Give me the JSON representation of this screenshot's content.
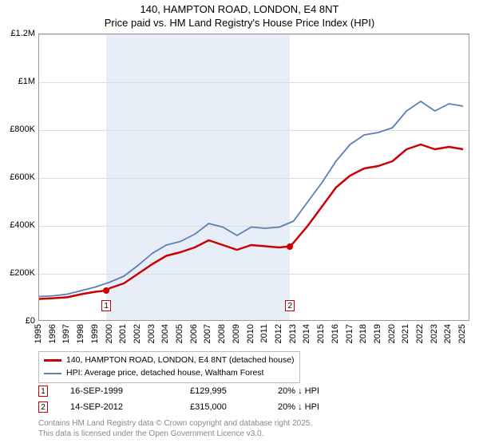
{
  "title_line1": "140, HAMPTON ROAD, LONDON, E4 8NT",
  "title_line2": "Price paid vs. HM Land Registry's House Price Index (HPI)",
  "chart": {
    "type": "line",
    "x_start": 1995,
    "x_end": 2025.5,
    "ylim": [
      0,
      1200000
    ],
    "ytick_step": 200000,
    "ytick_labels": [
      "£0",
      "£200K",
      "£400K",
      "£600K",
      "£800K",
      "£1M",
      "£1.2M"
    ],
    "xticks": [
      1995,
      1996,
      1997,
      1998,
      1999,
      2000,
      2001,
      2002,
      2003,
      2004,
      2005,
      2006,
      2007,
      2008,
      2009,
      2010,
      2011,
      2012,
      2013,
      2014,
      2015,
      2016,
      2017,
      2018,
      2019,
      2020,
      2021,
      2022,
      2023,
      2024,
      2025
    ],
    "background_color": "#ffffff",
    "grid_color": "#dcdcdc",
    "shaded_bands": [
      {
        "from": 1999.75,
        "to": 2012.75,
        "color": "#e8eef7"
      }
    ],
    "series": [
      {
        "name": "price_paid",
        "label": "140, HAMPTON ROAD, LONDON, E4 8NT (detached house)",
        "color": "#cc0000",
        "width": 2.5,
        "data": [
          [
            1995,
            95000
          ],
          [
            1996,
            98000
          ],
          [
            1997,
            102000
          ],
          [
            1998,
            115000
          ],
          [
            1999,
            125000
          ],
          [
            1999.75,
            129995
          ],
          [
            2000,
            140000
          ],
          [
            2001,
            160000
          ],
          [
            2002,
            200000
          ],
          [
            2003,
            240000
          ],
          [
            2004,
            275000
          ],
          [
            2005,
            290000
          ],
          [
            2006,
            310000
          ],
          [
            2007,
            340000
          ],
          [
            2008,
            320000
          ],
          [
            2009,
            300000
          ],
          [
            2010,
            320000
          ],
          [
            2011,
            315000
          ],
          [
            2012,
            310000
          ],
          [
            2012.75,
            315000
          ],
          [
            2013,
            330000
          ],
          [
            2014,
            400000
          ],
          [
            2015,
            480000
          ],
          [
            2016,
            560000
          ],
          [
            2017,
            610000
          ],
          [
            2018,
            640000
          ],
          [
            2019,
            650000
          ],
          [
            2020,
            670000
          ],
          [
            2021,
            720000
          ],
          [
            2022,
            740000
          ],
          [
            2023,
            720000
          ],
          [
            2024,
            730000
          ],
          [
            2025,
            720000
          ]
        ]
      },
      {
        "name": "hpi",
        "label": "HPI: Average price, detached house, Waltham Forest",
        "color": "#5b7fb5",
        "width": 1.8,
        "data": [
          [
            1995,
            105000
          ],
          [
            1996,
            108000
          ],
          [
            1997,
            115000
          ],
          [
            1998,
            130000
          ],
          [
            1999,
            145000
          ],
          [
            2000,
            165000
          ],
          [
            2001,
            190000
          ],
          [
            2002,
            235000
          ],
          [
            2003,
            285000
          ],
          [
            2004,
            320000
          ],
          [
            2005,
            335000
          ],
          [
            2006,
            365000
          ],
          [
            2007,
            410000
          ],
          [
            2008,
            395000
          ],
          [
            2009,
            360000
          ],
          [
            2010,
            395000
          ],
          [
            2011,
            390000
          ],
          [
            2012,
            395000
          ],
          [
            2013,
            420000
          ],
          [
            2014,
            500000
          ],
          [
            2015,
            580000
          ],
          [
            2016,
            670000
          ],
          [
            2017,
            740000
          ],
          [
            2018,
            780000
          ],
          [
            2019,
            790000
          ],
          [
            2020,
            810000
          ],
          [
            2021,
            880000
          ],
          [
            2022,
            920000
          ],
          [
            2023,
            880000
          ],
          [
            2024,
            910000
          ],
          [
            2025,
            900000
          ]
        ]
      }
    ],
    "sale_markers": [
      {
        "n": "1",
        "x": 1999.75,
        "y": 129995,
        "label_y": 90000
      },
      {
        "n": "2",
        "x": 2012.75,
        "y": 315000,
        "label_y": 90000
      }
    ]
  },
  "sales": [
    {
      "n": "1",
      "date": "16-SEP-1999",
      "price": "£129,995",
      "diff": "20% ↓ HPI"
    },
    {
      "n": "2",
      "date": "14-SEP-2012",
      "price": "£315,000",
      "diff": "20% ↓ HPI"
    }
  ],
  "footer_line1": "Contains HM Land Registry data © Crown copyright and database right 2025.",
  "footer_line2": "This data is licensed under the Open Government Licence v3.0."
}
